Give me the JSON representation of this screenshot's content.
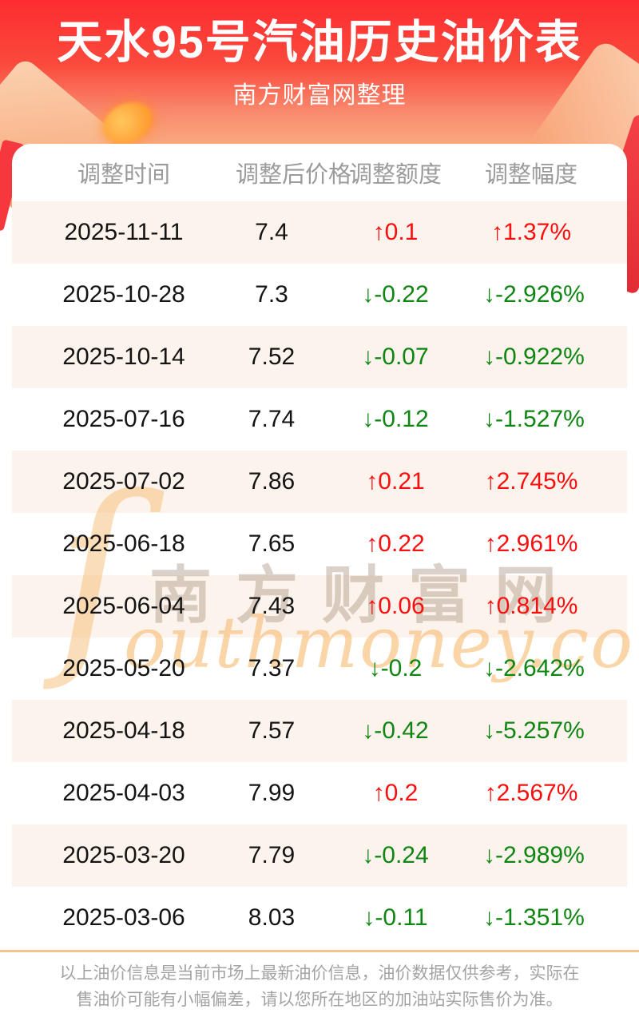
{
  "page": {
    "title": "天水95号汽油历史油价表",
    "subtitle": "南方财富网整理"
  },
  "chart_data": {
    "type": "table",
    "title": "天水95号汽油历史油价表",
    "source_note": "南方财富网整理",
    "columns": [
      "调整时间",
      "调整后价格",
      "调整额度",
      "调整幅度"
    ],
    "rows": [
      {
        "date": "2025-11-11",
        "price": 7.4,
        "change": 0.1,
        "change_pct": 1.37,
        "direction": "up"
      },
      {
        "date": "2025-10-28",
        "price": 7.3,
        "change": -0.22,
        "change_pct": -2.926,
        "direction": "down"
      },
      {
        "date": "2025-10-14",
        "price": 7.52,
        "change": -0.07,
        "change_pct": -0.922,
        "direction": "down"
      },
      {
        "date": "2025-07-16",
        "price": 7.74,
        "change": -0.12,
        "change_pct": -1.527,
        "direction": "down"
      },
      {
        "date": "2025-07-02",
        "price": 7.86,
        "change": 0.21,
        "change_pct": 2.745,
        "direction": "up"
      },
      {
        "date": "2025-06-18",
        "price": 7.65,
        "change": 0.22,
        "change_pct": 2.961,
        "direction": "up"
      },
      {
        "date": "2025-06-04",
        "price": 7.43,
        "change": 0.06,
        "change_pct": 0.814,
        "direction": "up"
      },
      {
        "date": "2025-05-20",
        "price": 7.37,
        "change": -0.2,
        "change_pct": -2.642,
        "direction": "down"
      },
      {
        "date": "2025-04-18",
        "price": 7.57,
        "change": -0.42,
        "change_pct": -5.257,
        "direction": "down"
      },
      {
        "date": "2025-04-03",
        "price": 7.99,
        "change": 0.2,
        "change_pct": 2.567,
        "direction": "up"
      },
      {
        "date": "2025-03-20",
        "price": 7.79,
        "change": -0.24,
        "change_pct": -2.989,
        "direction": "down"
      },
      {
        "date": "2025-03-06",
        "price": 8.03,
        "change": -0.11,
        "change_pct": -1.351,
        "direction": "down"
      }
    ]
  },
  "arrows": {
    "up": "↑",
    "down": "↓"
  },
  "watermark": {
    "initial": "ſ",
    "cjk": "南方财富网",
    "latin": "outhmoney.com"
  },
  "footer": {
    "disclaimer": "以上油价信息是当前市场上最新油价信息，油价数据仅供参考，实际在售油价可能有小幅偏差，请以您所在地区的加油站实际售价为准。"
  },
  "colors": {
    "hero_top": "#fd2c31",
    "hero_mid": "#fa4a3c",
    "hero_bottom": "#f9a87e",
    "up": "#fa0f0f",
    "down": "#0f8512",
    "row_alt": "#fdf3ed",
    "divider": "#f6c38e",
    "header_text": "#9b9b9b",
    "cell_text": "#141414",
    "footer_text": "#a3a3a3",
    "watermark_cjk": "rgba(146,124,100,0.34)",
    "watermark_orange": "rgba(247,185,110,0.6)"
  }
}
